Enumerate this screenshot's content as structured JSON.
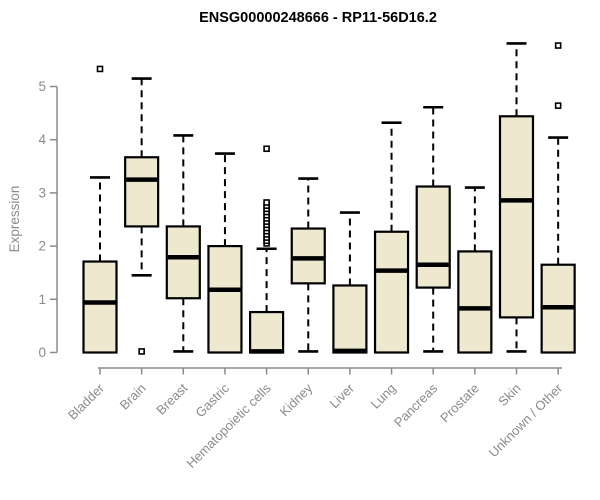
{
  "chart_data": {
    "type": "boxplot",
    "title": "ENSG00000248666 - RP11-56D16.2",
    "ylabel": "Expression",
    "xlabel": "",
    "yticks": [
      0,
      1,
      2,
      3,
      4,
      5
    ],
    "ylim": [
      -0.25,
      5.9
    ],
    "grid": false,
    "legend": null,
    "categories": [
      "Bladder",
      "Brain",
      "Breast",
      "Gastric",
      "Hematopoietic cells",
      "Kidney",
      "Liver",
      "Lung",
      "Pancreas",
      "Prostate",
      "Skin",
      "Unknown / Other"
    ],
    "series": [
      {
        "name": "Bladder",
        "whisker_low": 0,
        "q1": 0,
        "median": 0.94,
        "q3": 1.71,
        "whisker_high": 3.29,
        "outliers": [
          5.33
        ]
      },
      {
        "name": "Brain",
        "whisker_low": 1.45,
        "q1": 2.37,
        "median": 3.25,
        "q3": 3.67,
        "whisker_high": 5.15,
        "outliers": [
          0.02
        ]
      },
      {
        "name": "Breast",
        "whisker_low": 0.02,
        "q1": 1.02,
        "median": 1.79,
        "q3": 2.37,
        "whisker_high": 4.08,
        "outliers": []
      },
      {
        "name": "Gastric",
        "whisker_low": 0,
        "q1": 0,
        "median": 1.18,
        "q3": 2.0,
        "whisker_high": 3.74,
        "outliers": []
      },
      {
        "name": "Hematopoietic cells",
        "whisker_low": 0,
        "q1": 0,
        "median": 0.02,
        "q3": 0.76,
        "whisker_high": 1.95,
        "outliers": [
          2.05,
          2.1,
          2.16,
          2.22,
          2.28,
          2.34,
          2.4,
          2.46,
          2.52,
          2.58,
          2.64,
          2.7,
          2.76,
          2.82,
          3.83
        ]
      },
      {
        "name": "Kidney",
        "whisker_low": 0.02,
        "q1": 1.3,
        "median": 1.77,
        "q3": 2.33,
        "whisker_high": 3.27,
        "outliers": []
      },
      {
        "name": "Liver",
        "whisker_low": 0,
        "q1": 0,
        "median": 0.03,
        "q3": 1.26,
        "whisker_high": 2.63,
        "outliers": []
      },
      {
        "name": "Lung",
        "whisker_low": 0,
        "q1": 0,
        "median": 1.54,
        "q3": 2.27,
        "whisker_high": 4.32,
        "outliers": []
      },
      {
        "name": "Pancreas",
        "whisker_low": 0.02,
        "q1": 1.22,
        "median": 1.65,
        "q3": 3.12,
        "whisker_high": 4.61,
        "outliers": []
      },
      {
        "name": "Prostate",
        "whisker_low": 0,
        "q1": 0,
        "median": 0.83,
        "q3": 1.9,
        "whisker_high": 3.1,
        "outliers": []
      },
      {
        "name": "Skin",
        "whisker_low": 0.02,
        "q1": 0.66,
        "median": 2.86,
        "q3": 4.44,
        "whisker_high": 5.81,
        "outliers": []
      },
      {
        "name": "Unknown / Other",
        "whisker_low": 0,
        "q1": 0,
        "median": 0.85,
        "q3": 1.65,
        "whisker_high": 4.04,
        "outliers": [
          4.64,
          5.77
        ]
      }
    ],
    "colors": {
      "box_fill": "#EDE8CE",
      "box_stroke": "#000000",
      "median": "#000000",
      "whisker": "#000000",
      "outlier_stroke": "#000000",
      "outlier_fill": "#FFFFFF",
      "axis": "#8B8B8B",
      "tick_labels": "#8B8B8B",
      "title": "#000000",
      "background": "#FFFFFF"
    }
  }
}
